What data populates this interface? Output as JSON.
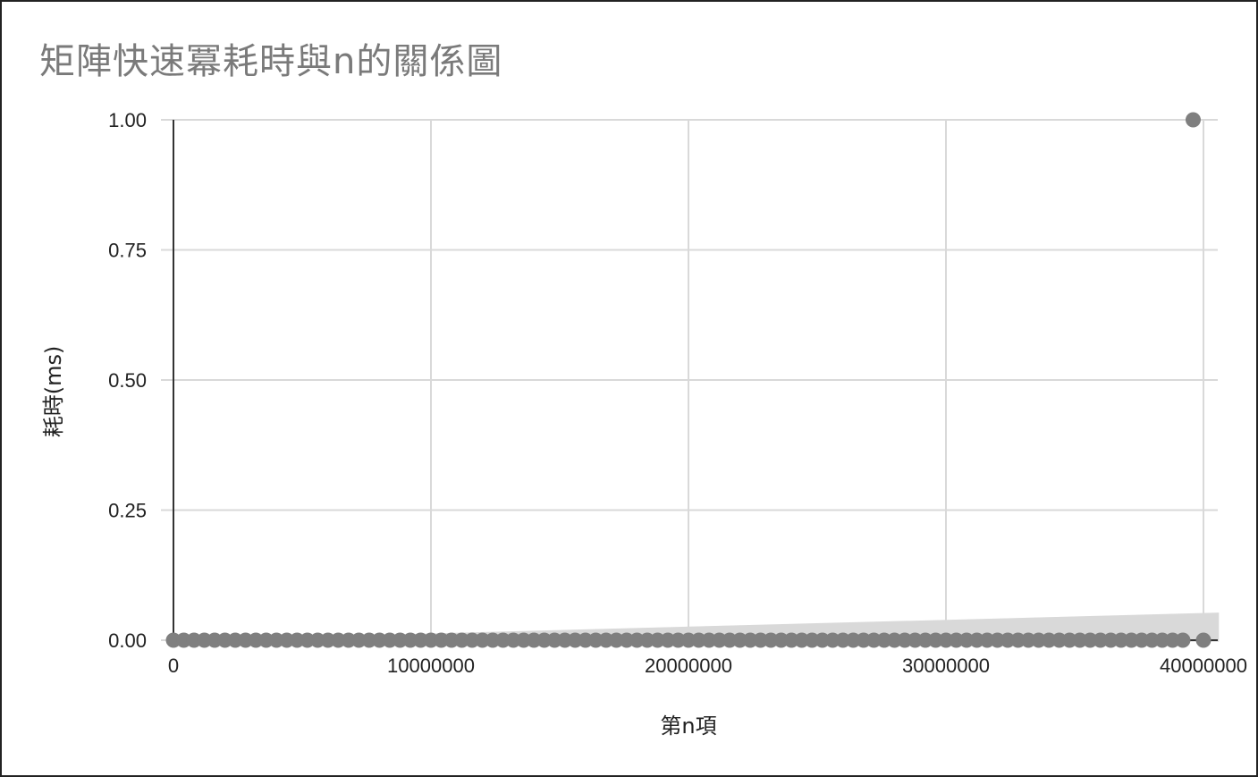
{
  "chart_data": {
    "type": "scatter",
    "title": "矩陣快速冪耗時與n的關係圖",
    "xlabel": "第n項",
    "ylabel": "耗時(ms)",
    "xlim": [
      0,
      40000000
    ],
    "ylim": [
      0,
      1
    ],
    "x_ticks": [
      "0",
      "10000000",
      "20000000",
      "30000000",
      "40000000"
    ],
    "y_ticks": [
      "0.00",
      "0.25",
      "0.50",
      "0.75",
      "1.00"
    ],
    "grid": true,
    "legend": "none",
    "colors": {
      "points": "#7f7f7f",
      "band": "#d9d9d9",
      "grid": "#d9d9d9",
      "axis": "#333333"
    },
    "series": [
      {
        "type": "scatter",
        "points": [
          [
            0,
            0
          ],
          [
            400000,
            0
          ],
          [
            800000,
            0
          ],
          [
            1200000,
            0
          ],
          [
            1600000,
            0
          ],
          [
            2000000,
            0
          ],
          [
            2400000,
            0
          ],
          [
            2800000,
            0
          ],
          [
            3200000,
            0
          ],
          [
            3600000,
            0
          ],
          [
            4000000,
            0
          ],
          [
            4400000,
            0
          ],
          [
            4800000,
            0
          ],
          [
            5200000,
            0
          ],
          [
            5600000,
            0
          ],
          [
            6000000,
            0
          ],
          [
            6400000,
            0
          ],
          [
            6800000,
            0
          ],
          [
            7200000,
            0
          ],
          [
            7600000,
            0
          ],
          [
            8000000,
            0
          ],
          [
            8400000,
            0
          ],
          [
            8800000,
            0
          ],
          [
            9200000,
            0
          ],
          [
            9600000,
            0
          ],
          [
            10000000,
            0
          ],
          [
            10400000,
            0
          ],
          [
            10800000,
            0
          ],
          [
            11200000,
            0
          ],
          [
            11600000,
            0
          ],
          [
            12000000,
            0
          ],
          [
            12400000,
            0
          ],
          [
            12800000,
            0
          ],
          [
            13200000,
            0
          ],
          [
            13600000,
            0
          ],
          [
            14000000,
            0
          ],
          [
            14400000,
            0
          ],
          [
            14800000,
            0
          ],
          [
            15200000,
            0
          ],
          [
            15600000,
            0
          ],
          [
            16000000,
            0
          ],
          [
            16400000,
            0
          ],
          [
            16800000,
            0
          ],
          [
            17200000,
            0
          ],
          [
            17600000,
            0
          ],
          [
            18000000,
            0
          ],
          [
            18400000,
            0
          ],
          [
            18800000,
            0
          ],
          [
            19200000,
            0
          ],
          [
            19600000,
            0
          ],
          [
            20000000,
            0
          ],
          [
            20400000,
            0
          ],
          [
            20800000,
            0
          ],
          [
            21200000,
            0
          ],
          [
            21600000,
            0
          ],
          [
            22000000,
            0
          ],
          [
            22400000,
            0
          ],
          [
            22800000,
            0
          ],
          [
            23200000,
            0
          ],
          [
            23600000,
            0
          ],
          [
            24000000,
            0
          ],
          [
            24400000,
            0
          ],
          [
            24800000,
            0
          ],
          [
            25200000,
            0
          ],
          [
            25600000,
            0
          ],
          [
            26000000,
            0
          ],
          [
            26400000,
            0
          ],
          [
            26800000,
            0
          ],
          [
            27200000,
            0
          ],
          [
            27600000,
            0
          ],
          [
            28000000,
            0
          ],
          [
            28400000,
            0
          ],
          [
            28800000,
            0
          ],
          [
            29200000,
            0
          ],
          [
            29600000,
            0
          ],
          [
            30000000,
            0
          ],
          [
            30400000,
            0
          ],
          [
            30800000,
            0
          ],
          [
            31200000,
            0
          ],
          [
            31600000,
            0
          ],
          [
            32000000,
            0
          ],
          [
            32400000,
            0
          ],
          [
            32800000,
            0
          ],
          [
            33200000,
            0
          ],
          [
            33600000,
            0
          ],
          [
            34000000,
            0
          ],
          [
            34400000,
            0
          ],
          [
            34800000,
            0
          ],
          [
            35200000,
            0
          ],
          [
            35600000,
            0
          ],
          [
            36000000,
            0
          ],
          [
            36400000,
            0
          ],
          [
            36800000,
            0
          ],
          [
            37200000,
            0
          ],
          [
            37600000,
            0
          ],
          [
            38000000,
            0
          ],
          [
            38400000,
            0
          ],
          [
            38800000,
            0
          ],
          [
            39200000,
            0
          ],
          [
            39600000,
            1
          ],
          [
            40000000,
            0
          ]
        ]
      },
      {
        "type": "confidence-band",
        "x": [
          0,
          40600000
        ],
        "lower": [
          0,
          -0.003
        ],
        "upper": [
          0,
          0.053
        ]
      }
    ]
  }
}
